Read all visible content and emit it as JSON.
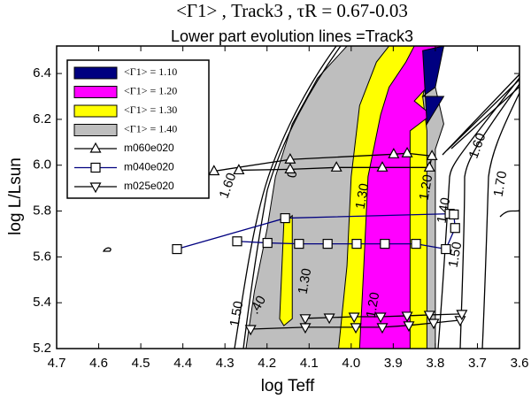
{
  "chart_data": {
    "type": "contour",
    "title": "<Γ1> , Track3 ,  τR = 0.67-0.03",
    "subtitle": "Lower part evolution lines =Track3",
    "xlabel": "log Teff",
    "ylabel": "log L/Lsun",
    "xlim": [
      4.7,
      3.6
    ],
    "ylim": [
      5.2,
      6.52
    ],
    "xticks": [
      4.7,
      4.6,
      4.5,
      4.4,
      4.3,
      4.2,
      4.1,
      {
        "value": 4,
        "label": "4.0"
      },
      3.9,
      3.8,
      3.7,
      3.6
    ],
    "yticks": [
      5.2,
      5.4,
      5.6,
      5.8,
      {
        "value": 6,
        "label": "6.0"
      },
      6.2,
      6.4
    ],
    "fills": [
      {
        "name": "<Γ1> = 1.10",
        "color": "#000080",
        "polygons": [
          {
            "x": [
              3.83,
              3.78,
              3.8,
              3.83,
              3.78,
              3.82
            ],
            "y": [
              6.5,
              6.52,
              6.34,
              6.3,
              6.3,
              6.18
            ]
          }
        ]
      },
      {
        "name": "<Γ1> = 1.20",
        "color": "#ff00ff",
        "polygons": [
          {
            "x": [
              3.98,
              3.97,
              3.96,
              3.93,
              3.91,
              3.87,
              3.85,
              3.78,
              3.8,
              3.85,
              3.81,
              3.86,
              3.86
            ],
            "y": [
              5.2,
              5.56,
              5.95,
              6.22,
              6.34,
              6.45,
              6.52,
              6.52,
              6.38,
              6.28,
              6.22,
              6.15,
              5.2
            ]
          }
        ]
      },
      {
        "name": "<Γ1> = 1.30",
        "color": "#ffff00",
        "polygons": [
          {
            "x": [
              4.03,
              4.01,
              4.0,
              3.98,
              3.94,
              3.91,
              3.8,
              3.83,
              3.82,
              3.82
            ],
            "y": [
              5.2,
              5.56,
              5.95,
              6.26,
              6.45,
              6.52,
              6.52,
              6.3,
              6.15,
              5.2
            ]
          },
          {
            "x": [
              4.17,
              4.16,
              4.14,
              4.14,
              4.16
            ],
            "y": [
              5.33,
              5.75,
              5.78,
              5.33,
              5.3
            ]
          }
        ]
      },
      {
        "name": "<Γ1> = 1.40",
        "color": "#bebebe",
        "polygons": [
          {
            "x": [
              4.25,
              4.23,
              4.2,
              4.18,
              4.14,
              4.08,
              4.01,
              3.85,
              3.8,
              3.78,
              3.8,
              3.8
            ],
            "y": [
              5.2,
              5.45,
              5.72,
              5.95,
              6.18,
              6.38,
              6.52,
              6.52,
              6.34,
              6.18,
              6.07,
              5.2
            ]
          }
        ]
      }
    ],
    "series": [
      {
        "name": "m060e020",
        "marker": "triangle-up",
        "color": "#000000",
        "x": [
          4.326,
          4.145,
          3.899,
          3.867,
          3.808,
          3.814,
          3.926,
          4.035,
          4.145,
          4.267
        ],
        "y": [
          5.974,
          6.025,
          6.048,
          6.052,
          6.04,
          5.99,
          5.99,
          5.99,
          5.982,
          5.978
        ]
      },
      {
        "name": "m040e020",
        "marker": "square",
        "color": "#000080",
        "x": [
          4.414,
          4.157,
          3.766,
          3.756,
          3.753,
          3.775,
          3.846,
          3.92,
          3.987,
          4.056,
          4.124,
          4.199,
          4.271
        ],
        "y": [
          5.634,
          5.769,
          5.788,
          5.785,
          5.726,
          5.634,
          5.657,
          5.657,
          5.657,
          5.657,
          5.657,
          5.661,
          5.668
        ]
      },
      {
        "name": "m025e020",
        "marker": "triangle-down",
        "color": "#000000",
        "x": [
          4.239,
          4.109,
          3.989,
          3.926,
          3.863,
          3.804,
          3.741,
          3.737,
          3.814,
          3.867,
          3.93,
          3.993,
          4.052,
          4.109
        ],
        "y": [
          5.285,
          5.293,
          5.293,
          5.293,
          5.301,
          5.312,
          5.324,
          5.351,
          5.347,
          5.343,
          5.339,
          5.339,
          5.335,
          5.332
        ]
      }
    ],
    "contour_labels": [
      "1.60",
      "1.50",
      ".40",
      "1.30",
      "0",
      "1.30",
      "1.20",
      "1.20",
      "1.40",
      "1.50",
      "1.60",
      "1.70"
    ]
  }
}
